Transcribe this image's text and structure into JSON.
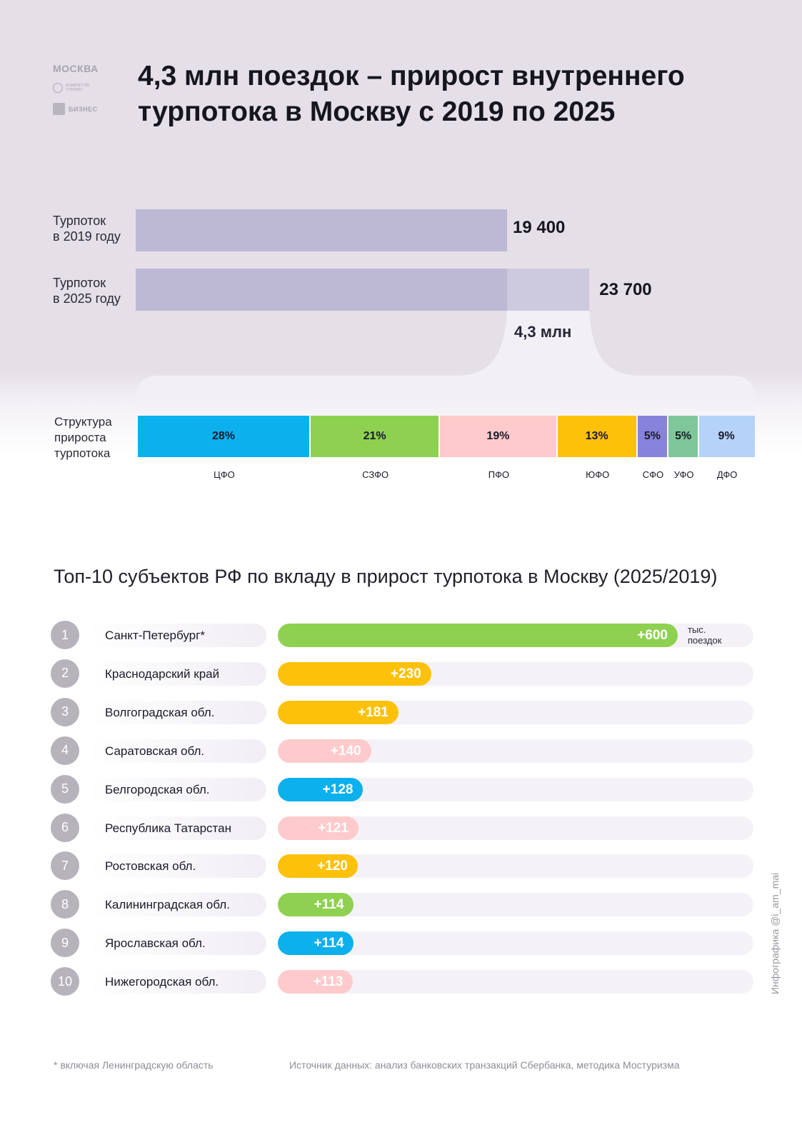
{
  "logos": {
    "city": "МОСКВА",
    "committee": "КОМИТЕТ ПО ТУРИЗМУ",
    "business": "БИЗНЕС"
  },
  "title": "4,3 млн поездок – прирост внутреннего турпотока в Москву с 2019 по 2025",
  "comparison": {
    "bars": [
      {
        "label_line1": "Турпоток",
        "label_line2": "в 2019 году",
        "value": 19400,
        "value_text": "19 400"
      },
      {
        "label_line1": "Турпоток",
        "label_line2": "в 2025 году",
        "value": 23700,
        "value_text": "23 700"
      }
    ],
    "increase_text": "4,3 млн",
    "colors": {
      "base": "#bdb8d4",
      "increase": "#cdc9df"
    }
  },
  "structure": {
    "label_line1": "Структура",
    "label_line2": "прироста",
    "label_line3": "турпотока",
    "segments": [
      {
        "share": 28,
        "share_text": "28%",
        "district": "ЦФО",
        "color": "#0bb0ed"
      },
      {
        "share": 21,
        "share_text": "21%",
        "district": "СЗФО",
        "color": "#8ed151"
      },
      {
        "share": 19,
        "share_text": "19%",
        "district": "ПФО",
        "color": "#fecacb"
      },
      {
        "share": 13,
        "share_text": "13%",
        "district": "ЮФО",
        "color": "#fdc10a"
      },
      {
        "share": 5,
        "share_text": "5%",
        "district": "СФО",
        "color": "#8783dc"
      },
      {
        "share": 5,
        "share_text": "5%",
        "district": "УФО",
        "color": "#7fc69a"
      },
      {
        "share": 9,
        "share_text": "9%",
        "district": "ДФО",
        "color": "#b5d2f8"
      }
    ]
  },
  "top10": {
    "title": "Топ-10 субъектов РФ по вкладу в прирост турпотока в Москву (2025/2019)",
    "unit_line1": "тыс.",
    "unit_line2": "поездок",
    "rows": [
      {
        "rank": "1",
        "name": "Санкт-Петербург*",
        "value": 600,
        "value_text": "+600",
        "color": "#8ed151"
      },
      {
        "rank": "2",
        "name": "Краснодарский край",
        "value": 230,
        "value_text": "+230",
        "color": "#fdc10a"
      },
      {
        "rank": "3",
        "name": "Волгоградская обл.",
        "value": 181,
        "value_text": "+181",
        "color": "#fdc10a"
      },
      {
        "rank": "4",
        "name": "Саратовская обл.",
        "value": 140,
        "value_text": "+140",
        "color": "#fecacb"
      },
      {
        "rank": "5",
        "name": "Белгородская обл.",
        "value": 128,
        "value_text": "+128",
        "color": "#0bb0ed"
      },
      {
        "rank": "6",
        "name": "Республика Татарстан",
        "value": 121,
        "value_text": "+121",
        "color": "#fecacb"
      },
      {
        "rank": "7",
        "name": "Ростовская обл.",
        "value": 120,
        "value_text": "+120",
        "color": "#fdc10a"
      },
      {
        "rank": "8",
        "name": "Калининградская обл.",
        "value": 114,
        "value_text": "+114",
        "color": "#8ed151"
      },
      {
        "rank": "9",
        "name": "Ярославская обл.",
        "value": 114,
        "value_text": "+114",
        "color": "#0bb0ed"
      },
      {
        "rank": "10",
        "name": "Нижегородская обл.",
        "value": 113,
        "value_text": "+113",
        "color": "#fecacb"
      }
    ]
  },
  "credit": "Инфографика @i_am_mai",
  "footnote": "* включая Ленинградскую область",
  "source": "Источник данных: анализ банковских транзакций Сбербанка, методика Мостуризма"
}
